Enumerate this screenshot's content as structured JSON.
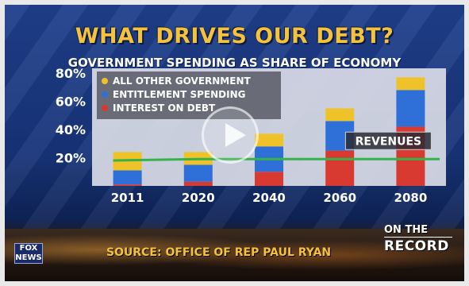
{
  "title": "WHAT DRIVES OUR DEBT?",
  "subtitle": "GOVERNMENT SPENDING AS SHARE OF ECONOMY",
  "source": "SOURCE: OFFICE OF REP PAUL RYAN",
  "branding": {
    "network_logo_text": "FOX NEWS",
    "show_line1": "ON THE",
    "show_line2": "RECORD"
  },
  "colors": {
    "all_other": "#f0c22a",
    "entitlement": "#2f6fd8",
    "interest": "#d83a32",
    "revenues_line": "#35b24a",
    "title": "#f4c23c"
  },
  "chart_data": {
    "type": "bar",
    "stacked": true,
    "categories": [
      "2011",
      "2020",
      "2040",
      "2060",
      "2080"
    ],
    "series": [
      {
        "name": "INTEREST ON DEBT",
        "values": [
          1,
          3,
          10,
          25,
          42
        ]
      },
      {
        "name": "ENTITLEMENT SPENDING",
        "values": [
          10,
          12,
          18,
          21,
          26
        ]
      },
      {
        "name": "ALL OTHER GOVERNMENT",
        "values": [
          13,
          9,
          9,
          9,
          9
        ]
      }
    ],
    "line_series": {
      "name": "REVENUES",
      "values": [
        18,
        19,
        19,
        19,
        19
      ]
    },
    "yticks": [
      {
        "value": 20,
        "label": "20%"
      },
      {
        "value": 40,
        "label": "40%"
      },
      {
        "value": 60,
        "label": "60%"
      },
      {
        "value": 80,
        "label": "80%"
      }
    ],
    "ylim": [
      0,
      80
    ],
    "legend": {
      "placement": "top-left",
      "entries": [
        "ALL OTHER GOVERNMENT",
        "ENTITLEMENT SPENDING",
        "INTEREST ON DEBT"
      ]
    },
    "annotation": "REVENUES",
    "grid": false
  }
}
